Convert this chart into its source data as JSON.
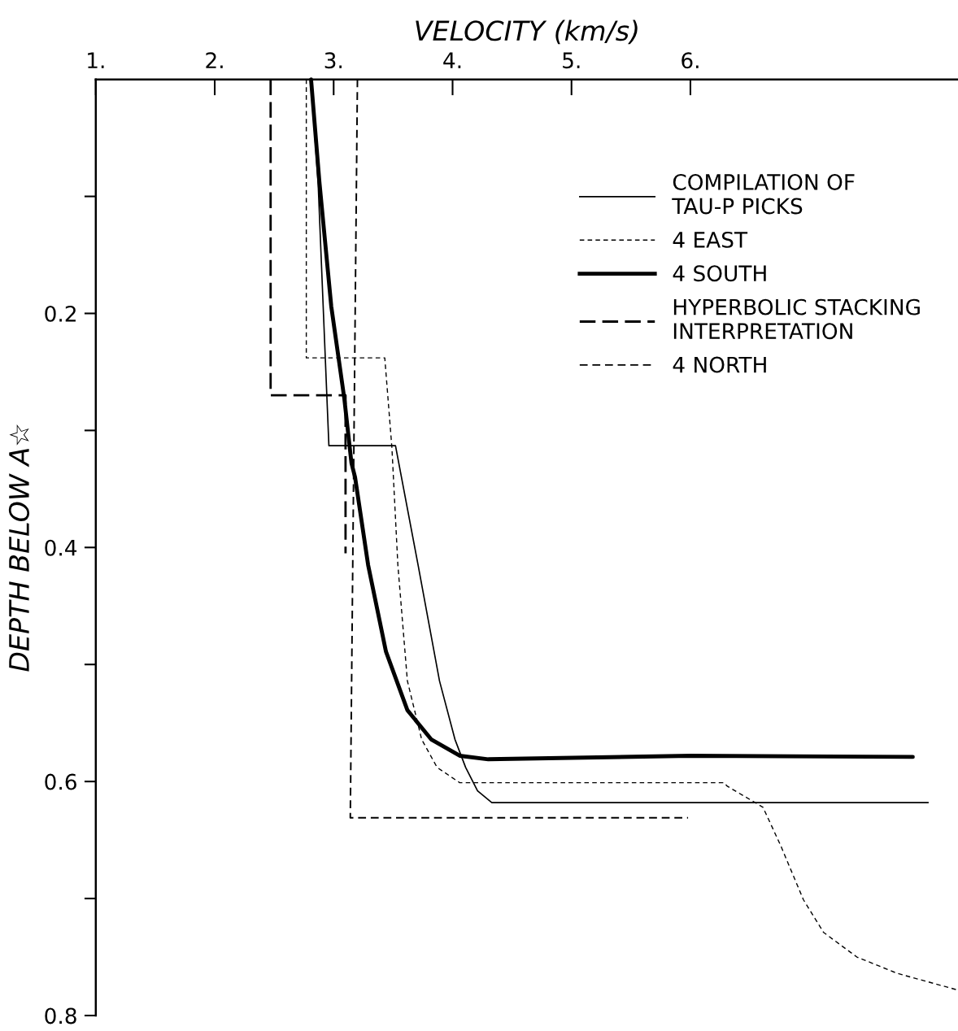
{
  "chart_data": {
    "type": "line",
    "xlabel": "VELOCITY (km/s)",
    "ylabel": "DEPTH BELOW A☆",
    "xlim": [
      1,
      8.25
    ],
    "xticks": [
      {
        "value": 1,
        "label": "1."
      },
      {
        "value": 2,
        "label": "2."
      },
      {
        "value": 3,
        "label": "3."
      },
      {
        "value": 4,
        "label": "4."
      },
      {
        "value": 5,
        "label": "5."
      },
      {
        "value": 6,
        "label": "6."
      }
    ],
    "ylim": [
      0.8,
      0
    ],
    "yticks": [
      {
        "value": 0.1,
        "label": null
      },
      0.2,
      {
        "value": 0.3,
        "label": null
      },
      0.4,
      {
        "value": 0.5,
        "label": null
      },
      0.6,
      {
        "value": 0.7,
        "label": null
      },
      0.8
    ],
    "legend": "top right",
    "marker": "none",
    "grid": false,
    "series": [
      {
        "name": "COMPILATION OF\nTAU-P PICKS",
        "color": "#000000",
        "line_style": "solid",
        "x": [
          2.81,
          2.87,
          2.96,
          3.52,
          3.71,
          3.89,
          4.02,
          4.11,
          4.21,
          4.33,
          8.0
        ],
        "values": [
          0,
          0.09,
          0.313,
          0.313,
          0.415,
          0.514,
          0.564,
          0.588,
          0.608,
          0.618,
          0.618
        ]
      },
      {
        "name": "4 EAST",
        "color": "#000000",
        "line_style": "dashed",
        "x": [
          2.77,
          2.77,
          3.43,
          3.49,
          3.54,
          3.62,
          3.74,
          3.87,
          4.06,
          6.28,
          6.31,
          6.61,
          6.76,
          6.95,
          7.12,
          7.4,
          7.74,
          8.24
        ],
        "values": [
          0,
          0.238,
          0.238,
          0.315,
          0.415,
          0.514,
          0.564,
          0.588,
          0.601,
          0.601,
          0.604,
          0.622,
          0.655,
          0.701,
          0.729,
          0.75,
          0.764,
          0.778
        ]
      },
      {
        "name": "4 SOUTH",
        "color": "#000000",
        "line_style": "solid",
        "x": [
          2.81,
          2.88,
          2.98,
          3.09,
          3.15,
          3.18,
          3.29,
          3.44,
          3.62,
          3.82,
          4.06,
          4.3,
          6.0,
          7.87
        ],
        "values": [
          0,
          0.0875,
          0.194,
          0.273,
          0.328,
          0.34,
          0.415,
          0.489,
          0.539,
          0.564,
          0.578,
          0.581,
          0.578,
          0.579
        ]
      },
      {
        "name": "HYPERBOLIC STACKING\nINTERPRETATION",
        "color": "#000000",
        "line_style": "dashed",
        "x": [
          2.47,
          2.47,
          3.1,
          3.1
        ],
        "values": [
          0,
          0.27,
          0.27,
          0.405
        ]
      },
      {
        "name": "4 NORTH",
        "color": "#000000",
        "line_style": "dashed",
        "x": [
          3.2,
          3.14,
          5.98
        ],
        "values": [
          0,
          0.631,
          0.631
        ]
      }
    ]
  }
}
